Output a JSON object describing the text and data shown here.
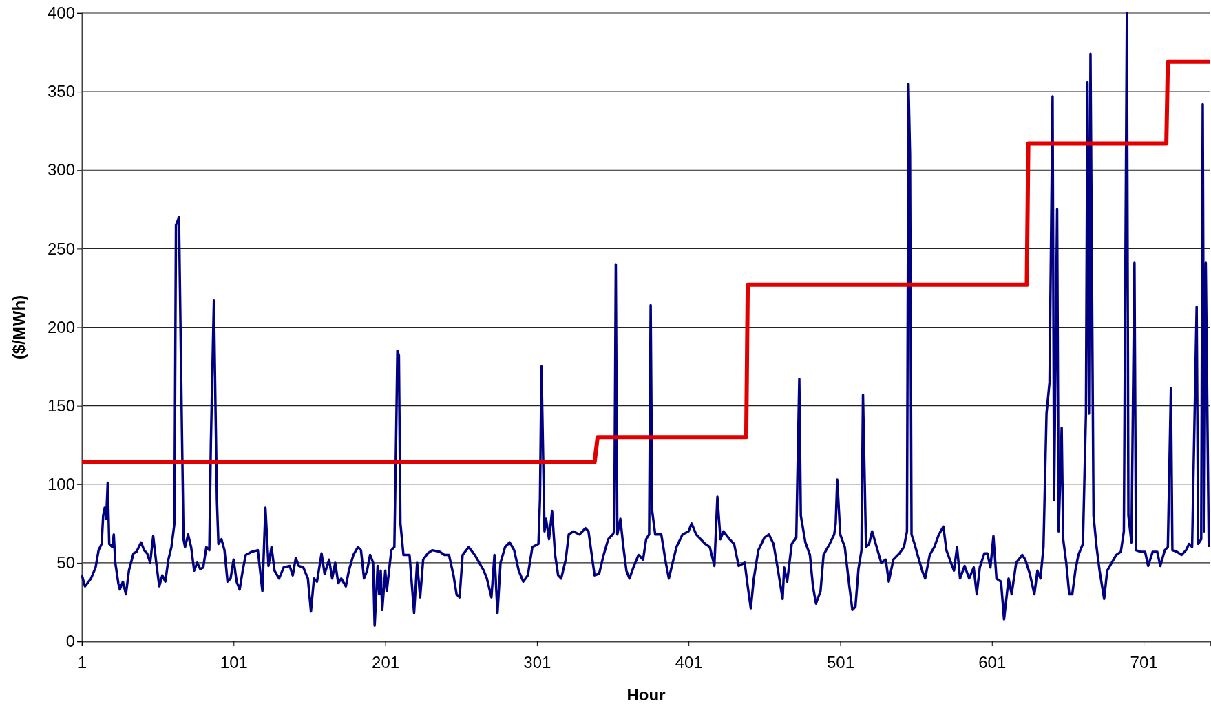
{
  "chart_data": {
    "type": "line",
    "xlabel": "Hour",
    "ylabel": "($/MWh)",
    "xlim": [
      1,
      745
    ],
    "ylim": [
      0,
      400
    ],
    "xticks": [
      1,
      101,
      201,
      301,
      401,
      501,
      601,
      701
    ],
    "yticks": [
      0,
      50,
      100,
      150,
      200,
      250,
      300,
      350,
      400
    ],
    "grid": "y",
    "line_style": "solid",
    "marker": "none",
    "series": [
      {
        "color": "#000080",
        "x": [
          1,
          3,
          7,
          10,
          12,
          14,
          15,
          16,
          17,
          18,
          19,
          21,
          22,
          23,
          25,
          26,
          28,
          30,
          32,
          35,
          37,
          40,
          42,
          44,
          46,
          48,
          50,
          52,
          54,
          56,
          58,
          60,
          62,
          63,
          65,
          67,
          68,
          69,
          71,
          73,
          75,
          77,
          79,
          81,
          83,
          85,
          86,
          88,
          90,
          91,
          93,
          95,
          97,
          99,
          101,
          103,
          105,
          107,
          109,
          113,
          117,
          120,
          122,
          124,
          126,
          128,
          131,
          134,
          138,
          140,
          142,
          144,
          147,
          150,
          152,
          154,
          156,
          159,
          161,
          164,
          166,
          168,
          170,
          172,
          175,
          177,
          180,
          183,
          185,
          187,
          189,
          191,
          193,
          194,
          196,
          197,
          198,
          199,
          201,
          202,
          205,
          207,
          208,
          209,
          210,
          211,
          213,
          217,
          220,
          222,
          224,
          226,
          229,
          232,
          237,
          240,
          243,
          246,
          248,
          250,
          252,
          256,
          260,
          263,
          266,
          268,
          271,
          273,
          275,
          277,
          280,
          283,
          286,
          289,
          292,
          295,
          298,
          302,
          303,
          304,
          306,
          307,
          309,
          311,
          313,
          315,
          317,
          320,
          322,
          325,
          329,
          333,
          335,
          339,
          342,
          345,
          348,
          351,
          352,
          353,
          354,
          356,
          358,
          360,
          362,
          365,
          368,
          371,
          373,
          375,
          376,
          377,
          379,
          383,
          386,
          388,
          390,
          393,
          397,
          401,
          403,
          406,
          409,
          412,
          415,
          418,
          420,
          422,
          424,
          428,
          431,
          434,
          438,
          440,
          442,
          444,
          447,
          451,
          454,
          457,
          460,
          463,
          464,
          466,
          469,
          472,
          474,
          475,
          478,
          481,
          483,
          485,
          488,
          490,
          494,
          497,
          498,
          499,
          501,
          504,
          507,
          509,
          511,
          513,
          515,
          516,
          518,
          520,
          522,
          525,
          528,
          531,
          533,
          536,
          540,
          543,
          545,
          546,
          547,
          548,
          550,
          552,
          555,
          557,
          560,
          563,
          566,
          569,
          571,
          574,
          576,
          578,
          580,
          583,
          586,
          589,
          591,
          593,
          596,
          598,
          600,
          602,
          604,
          607,
          609,
          612,
          614,
          617,
          621,
          623,
          626,
          629,
          631,
          633,
          635,
          637,
          639,
          641,
          642,
          644,
          645,
          647,
          648,
          650,
          652,
          654,
          656,
          658,
          661,
          663,
          664,
          665,
          666,
          668,
          670,
          672,
          675,
          677,
          680,
          683,
          686,
          688,
          690,
          691,
          693,
          695,
          696,
          699,
          702,
          704,
          707,
          710,
          712,
          715,
          717,
          719,
          720,
          723,
          726,
          729,
          731,
          733,
          736,
          737,
          739,
          740,
          741,
          742,
          744
        ],
        "values": [
          42,
          35,
          40,
          47,
          58,
          62,
          80,
          85,
          78,
          101,
          62,
          60,
          68,
          50,
          37,
          33,
          38,
          30,
          45,
          56,
          57,
          63,
          58,
          56,
          50,
          67,
          50,
          35,
          42,
          38,
          52,
          60,
          75,
          265,
          270,
          130,
          65,
          60,
          68,
          60,
          45,
          50,
          46,
          47,
          60,
          58,
          125,
          217,
          90,
          62,
          65,
          58,
          38,
          40,
          52,
          38,
          33,
          45,
          55,
          57,
          58,
          32,
          85,
          48,
          60,
          45,
          40,
          47,
          48,
          42,
          53,
          48,
          47,
          40,
          19,
          40,
          38,
          56,
          43,
          52,
          40,
          50,
          37,
          40,
          35,
          45,
          55,
          60,
          58,
          40,
          45,
          55,
          50,
          10,
          48,
          30,
          45,
          20,
          45,
          32,
          58,
          60,
          120,
          185,
          182,
          75,
          55,
          55,
          18,
          50,
          28,
          52,
          56,
          58,
          57,
          55,
          55,
          42,
          30,
          28,
          55,
          60,
          55,
          50,
          45,
          40,
          28,
          55,
          18,
          50,
          60,
          63,
          58,
          45,
          38,
          42,
          60,
          62,
          90,
          175,
          70,
          78,
          65,
          83,
          55,
          42,
          40,
          52,
          68,
          70,
          68,
          72,
          70,
          42,
          43,
          55,
          65,
          68,
          70,
          240,
          68,
          78,
          60,
          45,
          40,
          48,
          55,
          52,
          65,
          68,
          214,
          83,
          68,
          68,
          50,
          40,
          48,
          60,
          68,
          70,
          75,
          68,
          65,
          62,
          60,
          48,
          92,
          65,
          70,
          65,
          62,
          48,
          50,
          35,
          21,
          40,
          58,
          66,
          68,
          62,
          45,
          27,
          47,
          38,
          62,
          66,
          167,
          80,
          63,
          55,
          35,
          24,
          32,
          55,
          62,
          68,
          75,
          103,
          68,
          60,
          35,
          20,
          22,
          46,
          58,
          157,
          60,
          62,
          70,
          60,
          50,
          52,
          38,
          52,
          56,
          60,
          70,
          355,
          310,
          68,
          62,
          55,
          45,
          40,
          55,
          60,
          68,
          73,
          58,
          50,
          45,
          60,
          40,
          48,
          40,
          47,
          30,
          47,
          56,
          56,
          47,
          67,
          40,
          38,
          14,
          40,
          30,
          50,
          55,
          52,
          43,
          30,
          45,
          40,
          60,
          145,
          165,
          347,
          90,
          275,
          70,
          136,
          65,
          50,
          30,
          30,
          45,
          55,
          62,
          145,
          356,
          145,
          374,
          80,
          60,
          45,
          27,
          45,
          50,
          55,
          57,
          70,
          400,
          80,
          63,
          241,
          58,
          57,
          57,
          48,
          57,
          57,
          48,
          58,
          60,
          161,
          58,
          57,
          55,
          58,
          62,
          60,
          213,
          62,
          65,
          342,
          70,
          241,
          60
        ]
      },
      {
        "color": "#e00000",
        "x": [
          1,
          339,
          341,
          439,
          440,
          624,
          625,
          716,
          717,
          745
        ],
        "values": [
          114,
          114,
          130,
          130,
          227,
          227,
          317,
          317,
          369,
          369
        ]
      }
    ]
  }
}
